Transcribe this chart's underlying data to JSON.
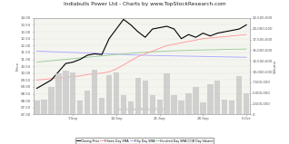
{
  "title": "Indiabulls Power Ltd - Charts by www.TopStockResearch.com",
  "watermark": "www.TopStockResearch.com",
  "xlabel_dates": [
    "7-Sep",
    "14-Sep",
    "21-Sep",
    "28-Sep",
    "5-Oct"
  ],
  "closing_price": [
    8.9,
    9.2,
    9.5,
    10.1,
    10.7,
    10.8,
    11.0,
    11.3,
    11.4,
    11.35,
    12.5,
    13.2,
    13.9,
    13.5,
    13.0,
    12.6,
    13.2,
    13.3,
    13.4,
    13.2,
    12.5,
    12.8,
    12.6,
    12.9,
    12.7,
    12.9,
    13.0,
    13.1,
    13.2,
    13.5
  ],
  "fifteen_day_sma": [
    9.5,
    9.55,
    9.6,
    9.65,
    9.7,
    9.75,
    9.8,
    9.9,
    9.95,
    10.0,
    10.1,
    10.3,
    10.6,
    10.9,
    11.2,
    11.4,
    11.6,
    11.8,
    12.0,
    12.1,
    12.2,
    12.3,
    12.4,
    12.5,
    12.55,
    12.6,
    12.65,
    12.7,
    12.75,
    12.8
  ],
  "fifty_day_sma": [
    11.6,
    11.58,
    11.56,
    11.54,
    11.52,
    11.5,
    11.48,
    11.46,
    11.44,
    11.42,
    11.4,
    11.38,
    11.35,
    11.33,
    11.31,
    11.3,
    11.28,
    11.27,
    11.26,
    11.25,
    11.24,
    11.23,
    11.22,
    11.21,
    11.2,
    11.19,
    11.18,
    11.17,
    11.16,
    11.15
  ],
  "hundred_day_sma": [
    10.8,
    10.85,
    10.9,
    10.95,
    11.0,
    11.05,
    11.1,
    11.15,
    11.2,
    11.25,
    11.3,
    11.35,
    11.4,
    11.44,
    11.48,
    11.52,
    11.55,
    11.58,
    11.6,
    11.62,
    11.64,
    11.65,
    11.67,
    11.68,
    11.69,
    11.7,
    11.72,
    11.73,
    11.74,
    11.75
  ],
  "volume": [
    3200000,
    3500000,
    6500000,
    9500000,
    10200000,
    9800000,
    3200000,
    5500000,
    10500000,
    3800000,
    9200000,
    9800000,
    4500000,
    3000000,
    8500000,
    8000000,
    4500000,
    3500000,
    9500000,
    4500000,
    3200000,
    5000000,
    6500000,
    2800000,
    7000000,
    8000000,
    3500000,
    3200000,
    9000000,
    5000000
  ],
  "closing_color": "#000000",
  "fifteen_color": "#ff9999",
  "fifty_color": "#aaaaff",
  "hundred_color": "#99cc99",
  "volume_color": "#cccccc",
  "bg_color": "#ffffff",
  "plot_bg": "#f5f5f0",
  "price_ylabel": "Price",
  "volume_ylabel": "Volume",
  "ylim_price": [
    7.0,
    14.0
  ],
  "ylim_volume": [
    0,
    22500000
  ],
  "legend_labels": [
    "Closing Price",
    "Fifteen Day SMA",
    "Fifty Day SMA",
    "Hundred Day SMA",
    "8 Day Volume"
  ],
  "price_yticks": [
    7.0,
    7.5,
    8.0,
    8.5,
    9.0,
    9.5,
    10.0,
    10.5,
    11.0,
    11.5,
    12.0,
    12.5,
    13.0,
    13.5,
    14.0
  ],
  "vol_yticks": [
    0,
    2500000,
    5000000,
    7500000,
    10000000,
    12500000,
    15000000,
    17500000,
    20000000,
    22500000
  ]
}
